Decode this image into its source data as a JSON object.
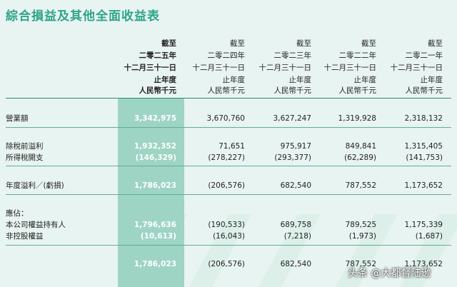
{
  "title": "綜合損益及其他全面收益表",
  "header": {
    "line1": [
      "截至",
      "截至",
      "截至",
      "截至",
      "截至"
    ],
    "line2": [
      "二零二五年",
      "二零二四年",
      "二零二三年",
      "二零二二年",
      "二零二一年"
    ],
    "line3": [
      "十二月三十一日",
      "十二月三十一日",
      "十二月三十一日",
      "十二月三十一日",
      "十二月三十一日"
    ],
    "line4": [
      "止年度",
      "止年度",
      "止年度",
      "止年度",
      "止年度"
    ],
    "line5": [
      "人民幣千元",
      "人民幣千元",
      "人民幣千元",
      "人民幣千元",
      "人民幣千元"
    ]
  },
  "rows": {
    "revenue": {
      "label": "營業額",
      "values": [
        "3,342,975",
        "3,670,760",
        "3,627,247",
        "1,319,928",
        "2,318,132"
      ]
    },
    "pretax": {
      "label": "除稅前溢利",
      "values": [
        "1,932,352",
        "71,651",
        "975,917",
        "849,841",
        "1,315,405"
      ]
    },
    "tax": {
      "label": "所得稅開支",
      "values": [
        "(146,329)",
        "(278,227)",
        "(293,377)",
        "(62,289)",
        "(141,753)"
      ]
    },
    "profit": {
      "label": "年度溢利／(虧損)",
      "values": [
        "1,786,023",
        "(206,576)",
        "682,540",
        "787,552",
        "1,173,652"
      ]
    },
    "attrib": {
      "label": "應佔："
    },
    "owners": {
      "label": "本公司權益持有人",
      "values": [
        "1,796,636",
        "(190,533)",
        "689,758",
        "789,525",
        "1,175,339"
      ]
    },
    "nci": {
      "label": "非控股權益",
      "values": [
        "(10,613)",
        "(16,043)",
        "(7,218)",
        "(1,973)",
        "(1,687)"
      ]
    },
    "total": {
      "label": "",
      "values": [
        "1,786,023",
        "(206,576)",
        "682,540",
        "787,552",
        "1,173,652"
      ]
    }
  },
  "watermark": "头条 @大都督陆逊",
  "colors": {
    "accent": "#2fa48a",
    "highlight": "#9ed4c3",
    "background": "#e8f4f1"
  }
}
